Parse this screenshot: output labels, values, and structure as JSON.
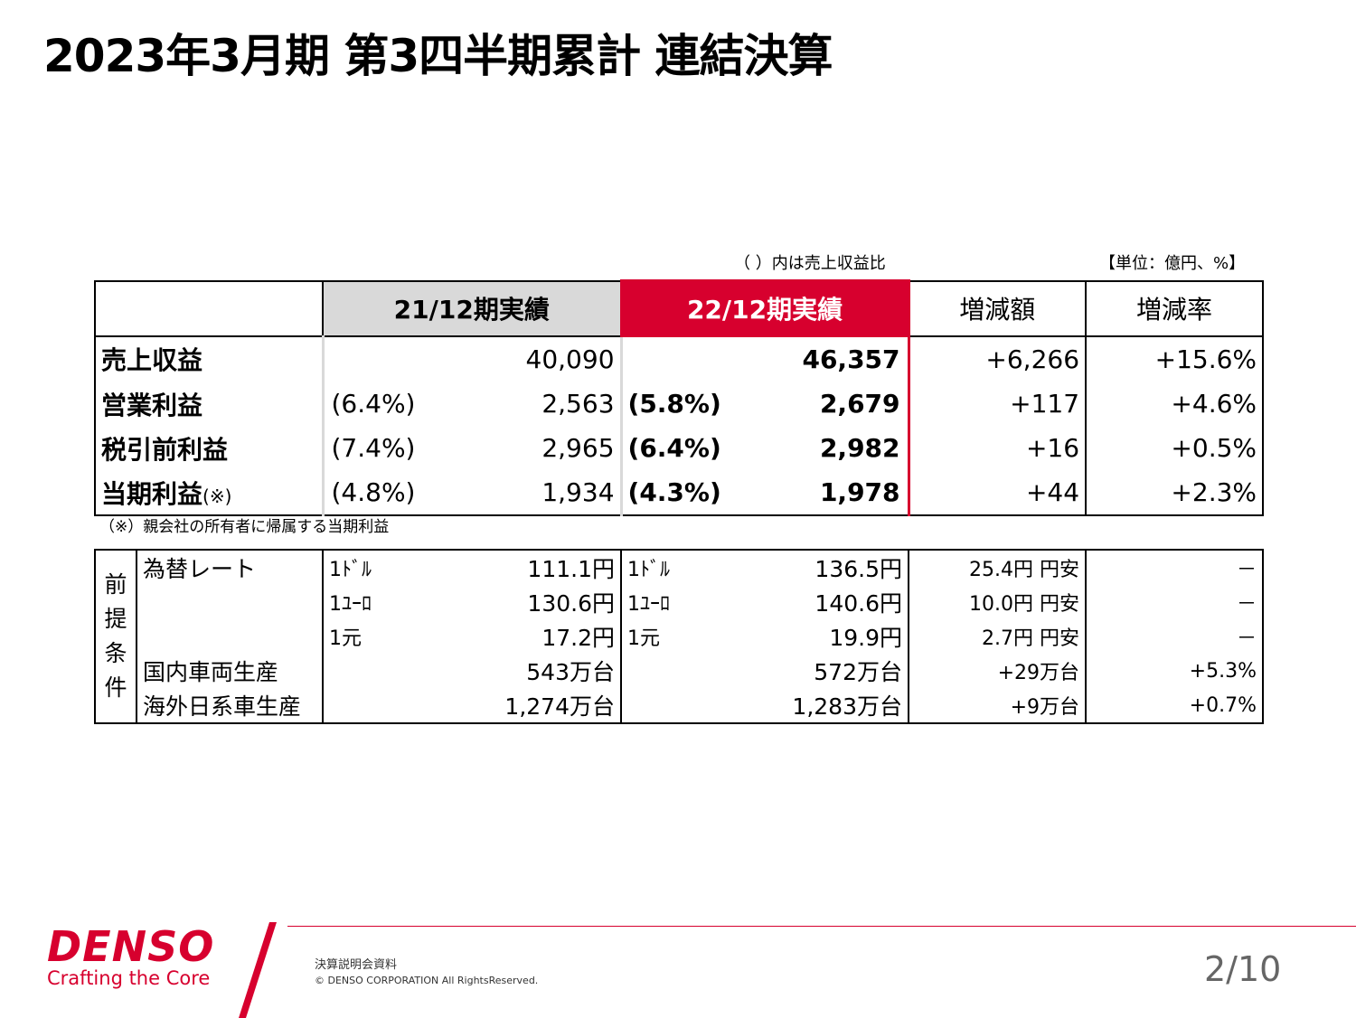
{
  "title": "2023年3月期 第3四半期累計 連結決算",
  "notes": {
    "ratio_note": "（ ）内は売上収益比",
    "unit_note": "【単位：億円、%】",
    "footnote": "（※）親会社の所有者に帰属する当期利益"
  },
  "headers": {
    "prev": "21/12期実績",
    "current": "22/12期実績",
    "change": "増減額",
    "rate": "増減率"
  },
  "rows": [
    {
      "label": "売上収益",
      "suffix": "",
      "prev_pct": "",
      "prev": "40,090",
      "cur_pct": "",
      "cur": "46,357",
      "change": "+6,266",
      "rate": "+15.6%"
    },
    {
      "label": "営業利益",
      "suffix": "",
      "prev_pct": "(6.4%)",
      "prev": "2,563",
      "cur_pct": "(5.8%)",
      "cur": "2,679",
      "change": "+117",
      "rate": "+4.6%"
    },
    {
      "label": "税引前利益",
      "suffix": "",
      "prev_pct": "(7.4%)",
      "prev": "2,965",
      "cur_pct": "(6.4%)",
      "cur": "2,982",
      "change": "+16",
      "rate": "+0.5%"
    },
    {
      "label": "当期利益",
      "suffix": "(※)",
      "prev_pct": "(4.8%)",
      "prev": "1,934",
      "cur_pct": "(4.3%)",
      "cur": "1,978",
      "change": "+44",
      "rate": "+2.3%"
    }
  ],
  "assumptions": {
    "side_label": [
      "前",
      "提",
      "条",
      "件"
    ],
    "rows": [
      {
        "cond": "為替レート",
        "prev_unit": "1ﾄﾞﾙ",
        "prev": "111.1円",
        "cur_unit": "1ﾄﾞﾙ",
        "cur": "136.5円",
        "change": "25.4円 円安",
        "rate": "－"
      },
      {
        "cond": "",
        "prev_unit": "1ﾕｰﾛ",
        "prev": "130.6円",
        "cur_unit": "1ﾕｰﾛ",
        "cur": "140.6円",
        "change": "10.0円 円安",
        "rate": "－"
      },
      {
        "cond": "",
        "prev_unit": "1元",
        "prev": "17.2円",
        "cur_unit": "1元",
        "cur": "19.9円",
        "change": "2.7円 円安",
        "rate": "－"
      },
      {
        "cond": "国内車両生産",
        "prev_unit": "",
        "prev": "543万台",
        "cur_unit": "",
        "cur": "572万台",
        "change": "+29万台",
        "rate": "+5.3%"
      },
      {
        "cond": "海外日系車生産",
        "prev_unit": "",
        "prev": "1,274万台",
        "cur_unit": "",
        "cur": "1,283万台",
        "change": "+9万台",
        "rate": "+0.7%"
      }
    ]
  },
  "footer": {
    "brand": "DENSO",
    "tagline": "Crafting the Core",
    "doc_name": "決算説明会資料",
    "copyright": "© DENSO CORPORATION All RightsReserved.",
    "page": "2/10"
  },
  "colors": {
    "brand_red": "#d7002e",
    "header_gray": "#d9d9d9"
  }
}
